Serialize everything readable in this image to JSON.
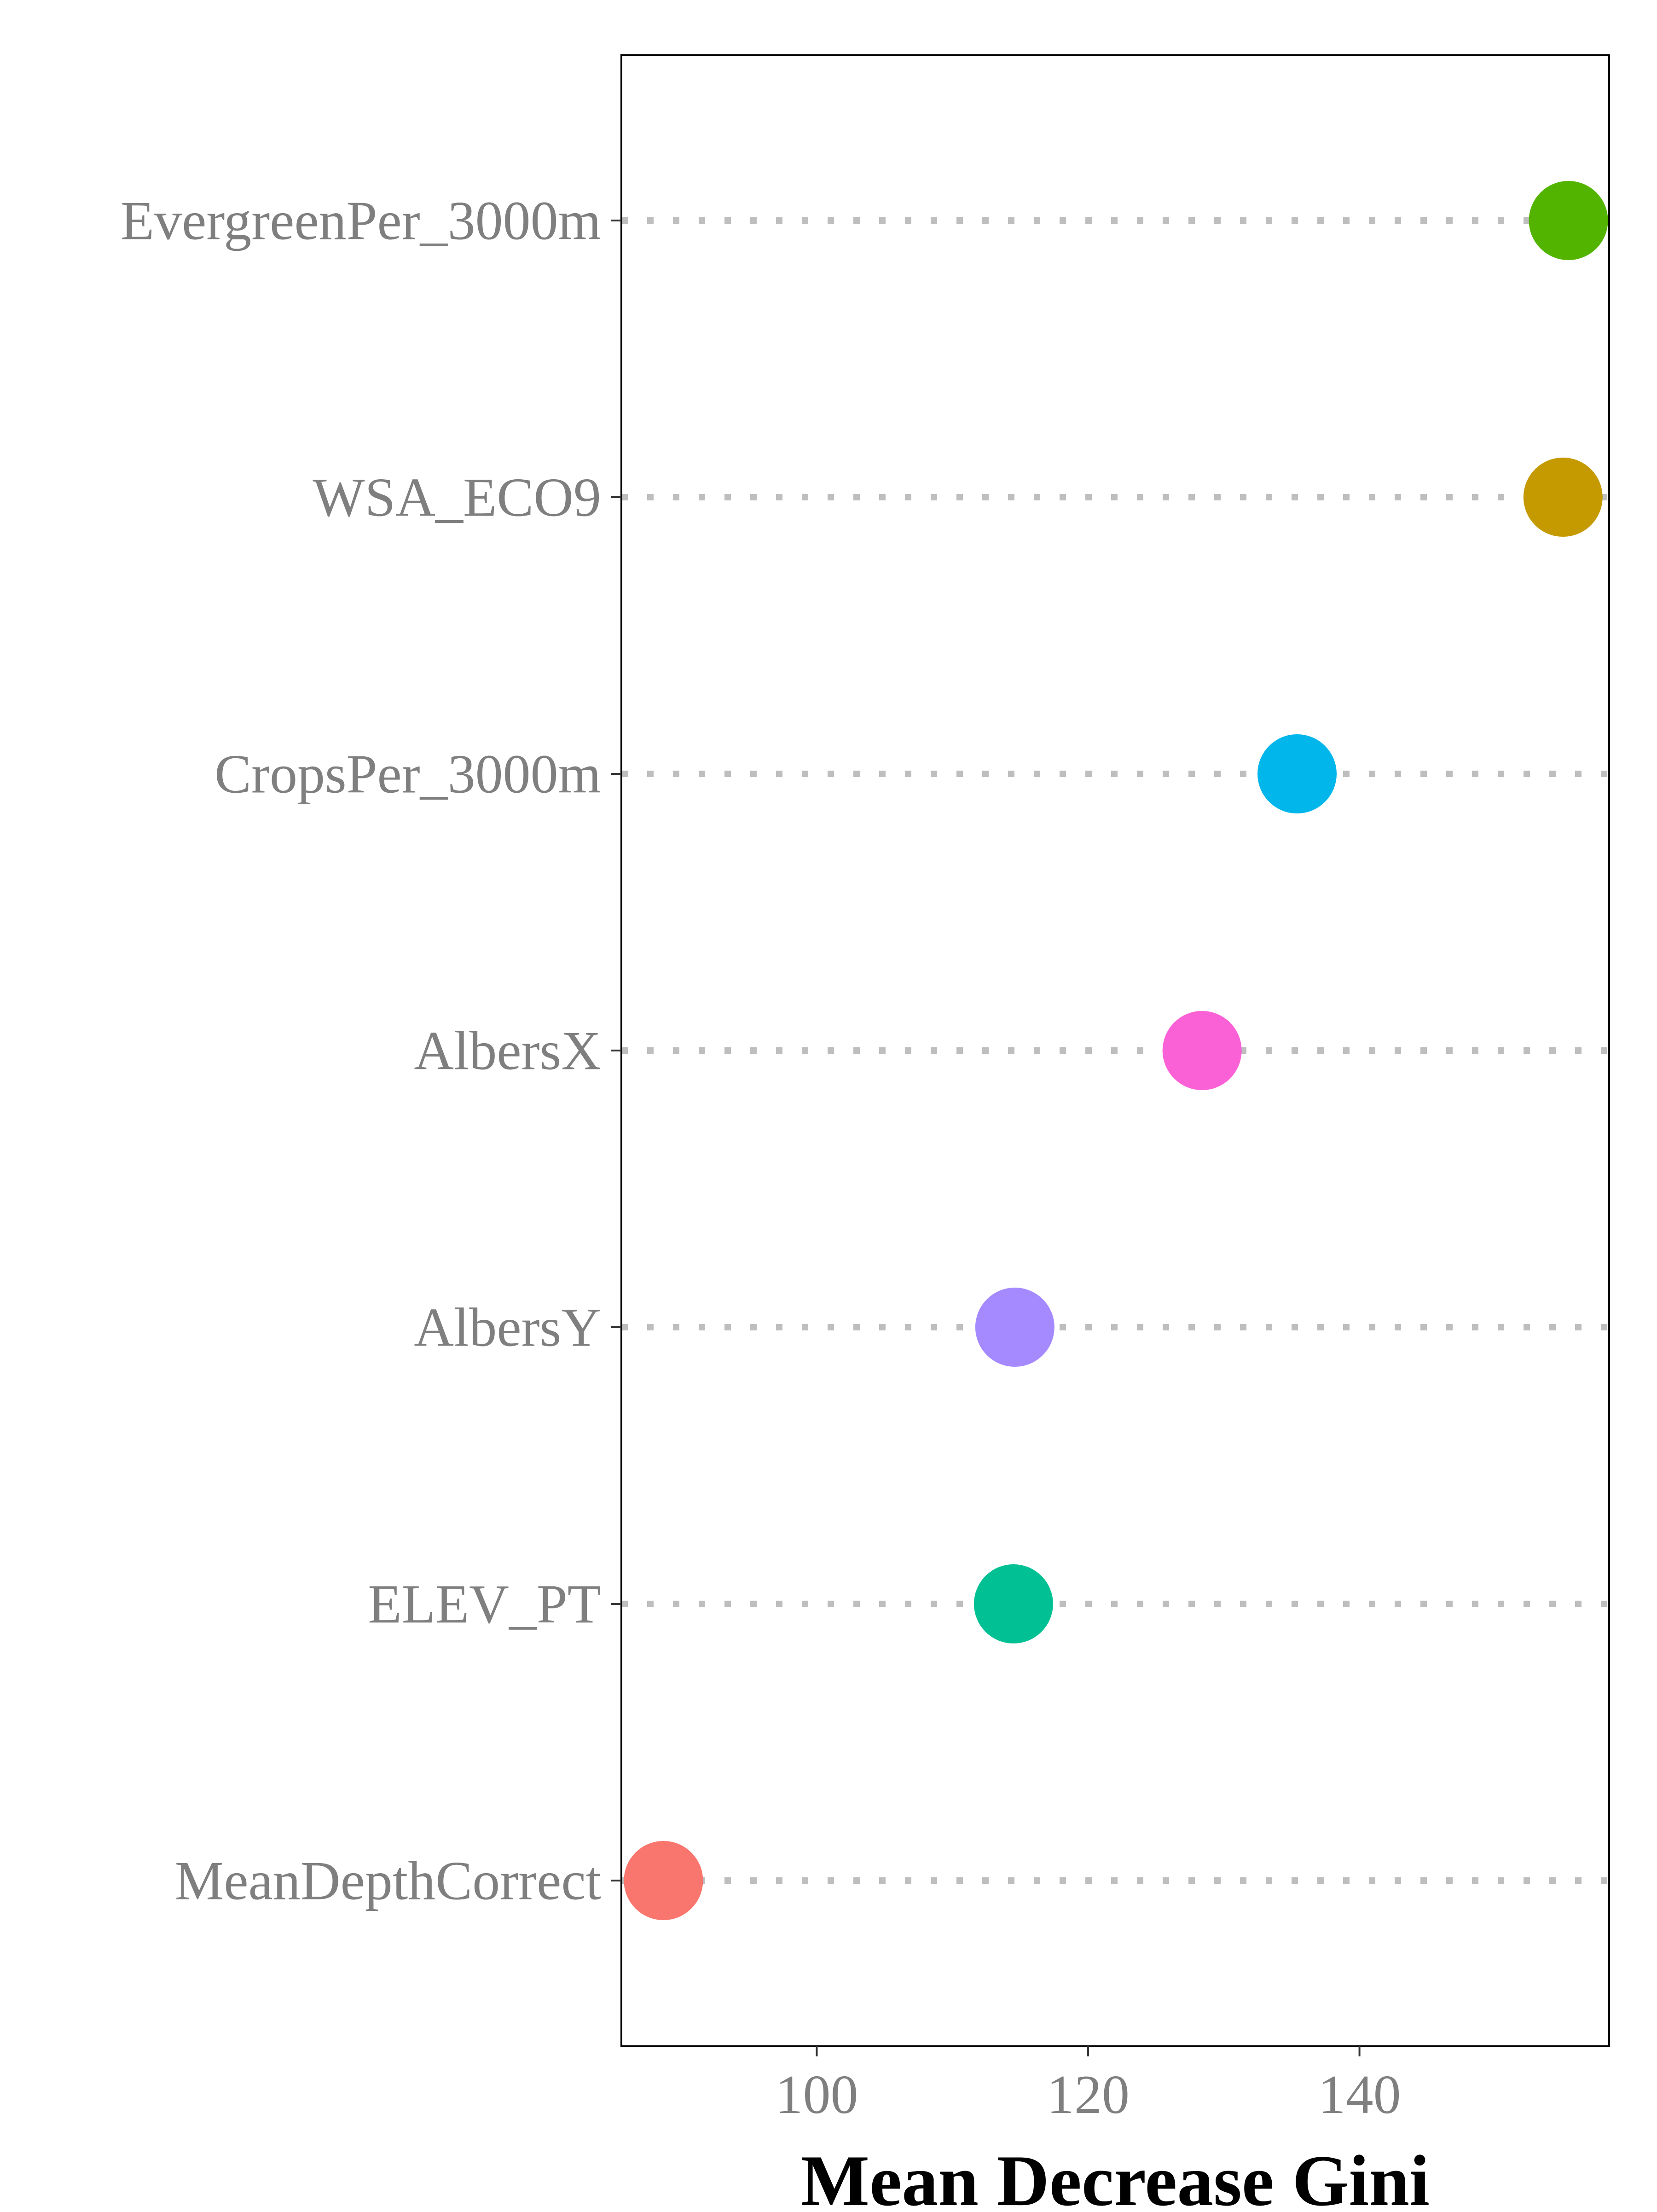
{
  "chart_data": {
    "type": "scatter",
    "title": "",
    "xlabel": "Mean Decrease Gini",
    "ylabel": "",
    "xlim": [
      85.6,
      158.4
    ],
    "x_ticks": [
      100,
      120,
      140
    ],
    "x_tick_labels": [
      "100",
      "120",
      "140"
    ],
    "grid": false,
    "legend": "none",
    "point_style": "dot-plot with dotted leader line per category",
    "categories": [
      "MeanDepthCorrect",
      "ELEV_PT",
      "AlbersY",
      "AlbersX",
      "CropsPer_3000m",
      "WSA_ECO9",
      "EvergreenPer_3000m"
    ],
    "values": [
      88.7,
      114.5,
      114.6,
      128.4,
      135.4,
      155.0,
      155.4
    ],
    "colors": [
      "#F8766D",
      "#00C094",
      "#A58AFF",
      "#FB61D7",
      "#00B6EB",
      "#C49A00",
      "#53B400"
    ],
    "leader_line_color": "#bebebe",
    "axis_text_color": "#7f7f7f",
    "title_color": "#000000"
  }
}
